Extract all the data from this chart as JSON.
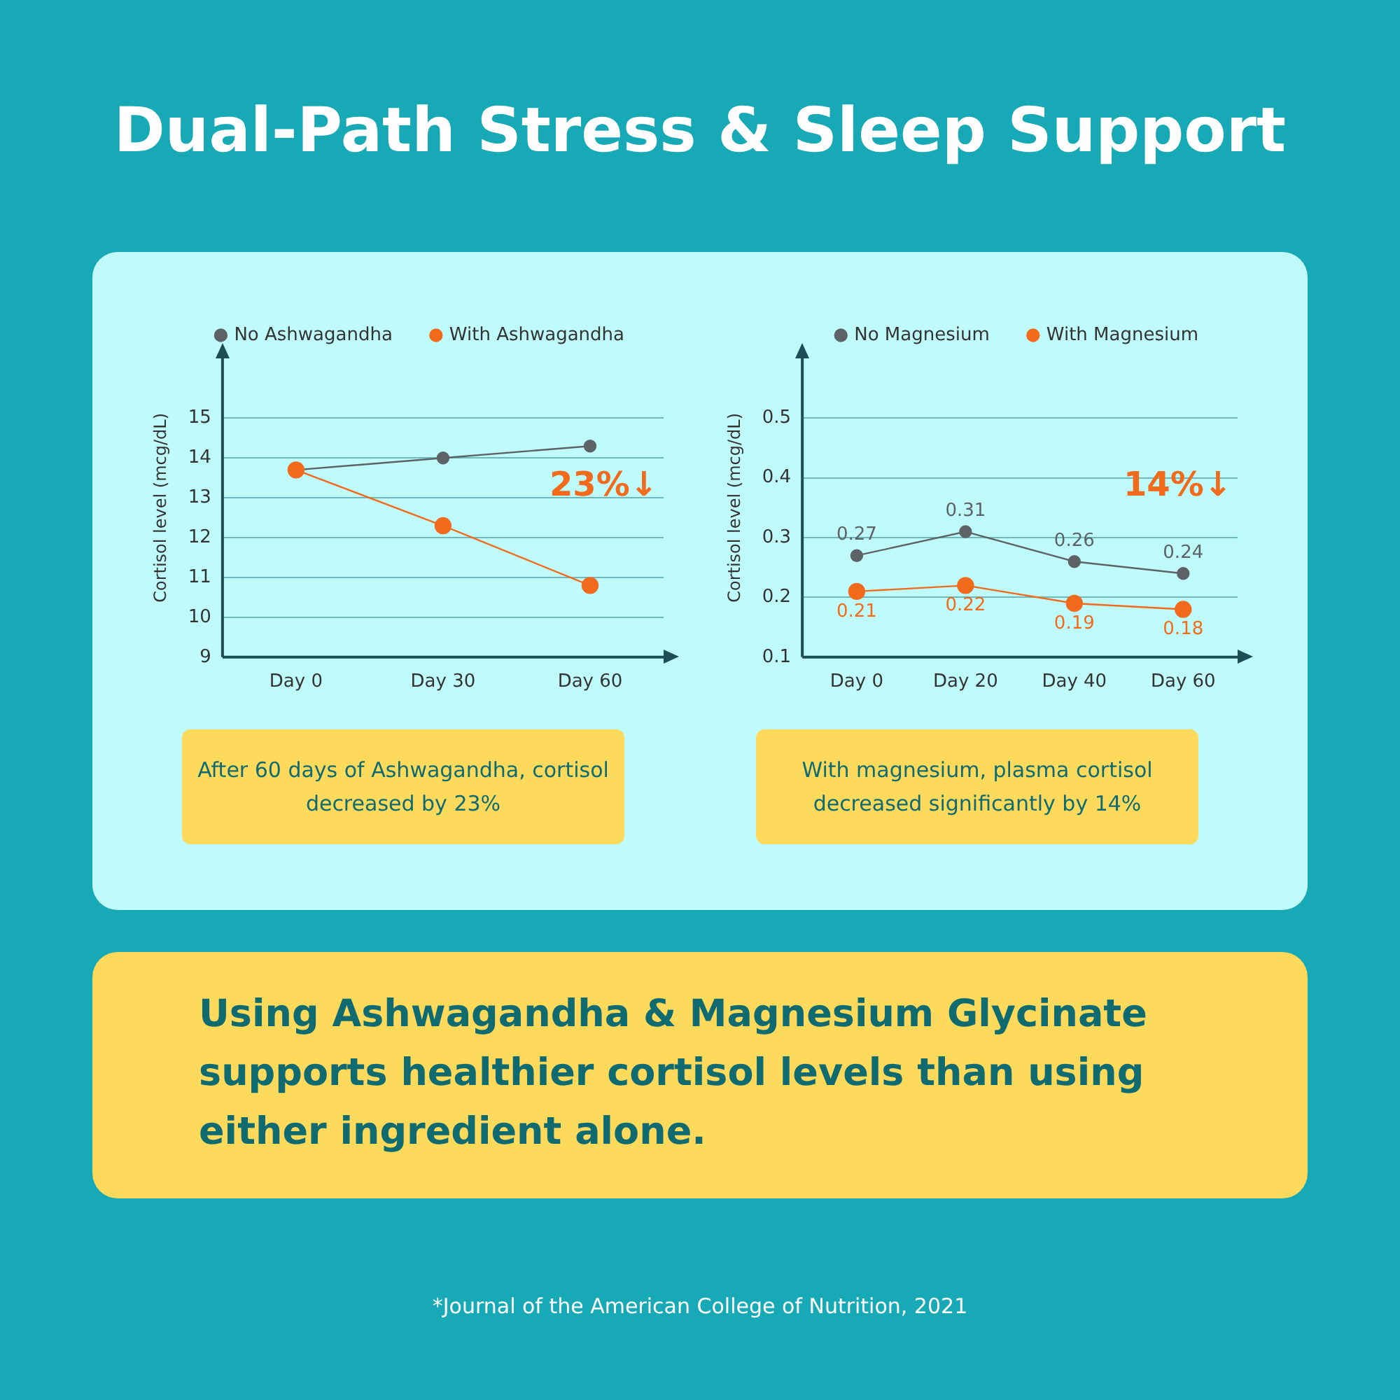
{
  "chart_data": [
    {
      "type": "other",
      "title": "Dual-Path Stress & Sleep Support"
    },
    {
      "type": "line",
      "categories": [
        "Day 0",
        "Day 30",
        "Day 60"
      ],
      "ylabel": "Cortisol level (mcg/dL)",
      "ylim": [
        9,
        16.5
      ],
      "yticks": [
        9,
        10,
        11,
        12,
        13,
        14,
        15
      ],
      "grid": "y",
      "legend": "top",
      "marker": "circle",
      "line_style": "solid",
      "series": [
        {
          "name": "No Ashwagandha",
          "color": "#5c6266",
          "values": [
            13.7,
            14.0,
            14.3
          ]
        },
        {
          "name": "With Ashwagandha",
          "color": "#f26a1b",
          "values": [
            13.7,
            12.3,
            10.8
          ]
        }
      ],
      "annotations": [
        "23%↓",
        "After 60 days of Ashwagandha, cortisol decreased by 23%"
      ]
    },
    {
      "type": "line",
      "categories": [
        "Day 0",
        "Day 20",
        "Day 40",
        "Day 60"
      ],
      "ylabel": "Cortisol level (mcg/dL)",
      "ylim": [
        0.1,
        0.6
      ],
      "yticks": [
        0.1,
        0.2,
        0.3,
        0.4,
        0.5
      ],
      "grid": "y",
      "legend": "top",
      "marker": "circle",
      "line_style": "solid",
      "data_labels": true,
      "series": [
        {
          "name": "No Magnesium",
          "color": "#5c6266",
          "values": [
            0.27,
            0.31,
            0.26,
            0.24
          ]
        },
        {
          "name": "With Magnesium",
          "color": "#f26a1b",
          "values": [
            0.21,
            0.22,
            0.19,
            0.18
          ]
        }
      ],
      "annotations": [
        "14%↓",
        "With magnesium, plasma cortisol decreased significantly by 14%"
      ]
    },
    {
      "type": "other",
      "annotations": [
        "Using Ashwagandha & Magnesium Glycinate supports healthier cortisol levels than using either ingredient alone.",
        "*Journal of the American College of Nutrition, 2021"
      ]
    }
  ]
}
